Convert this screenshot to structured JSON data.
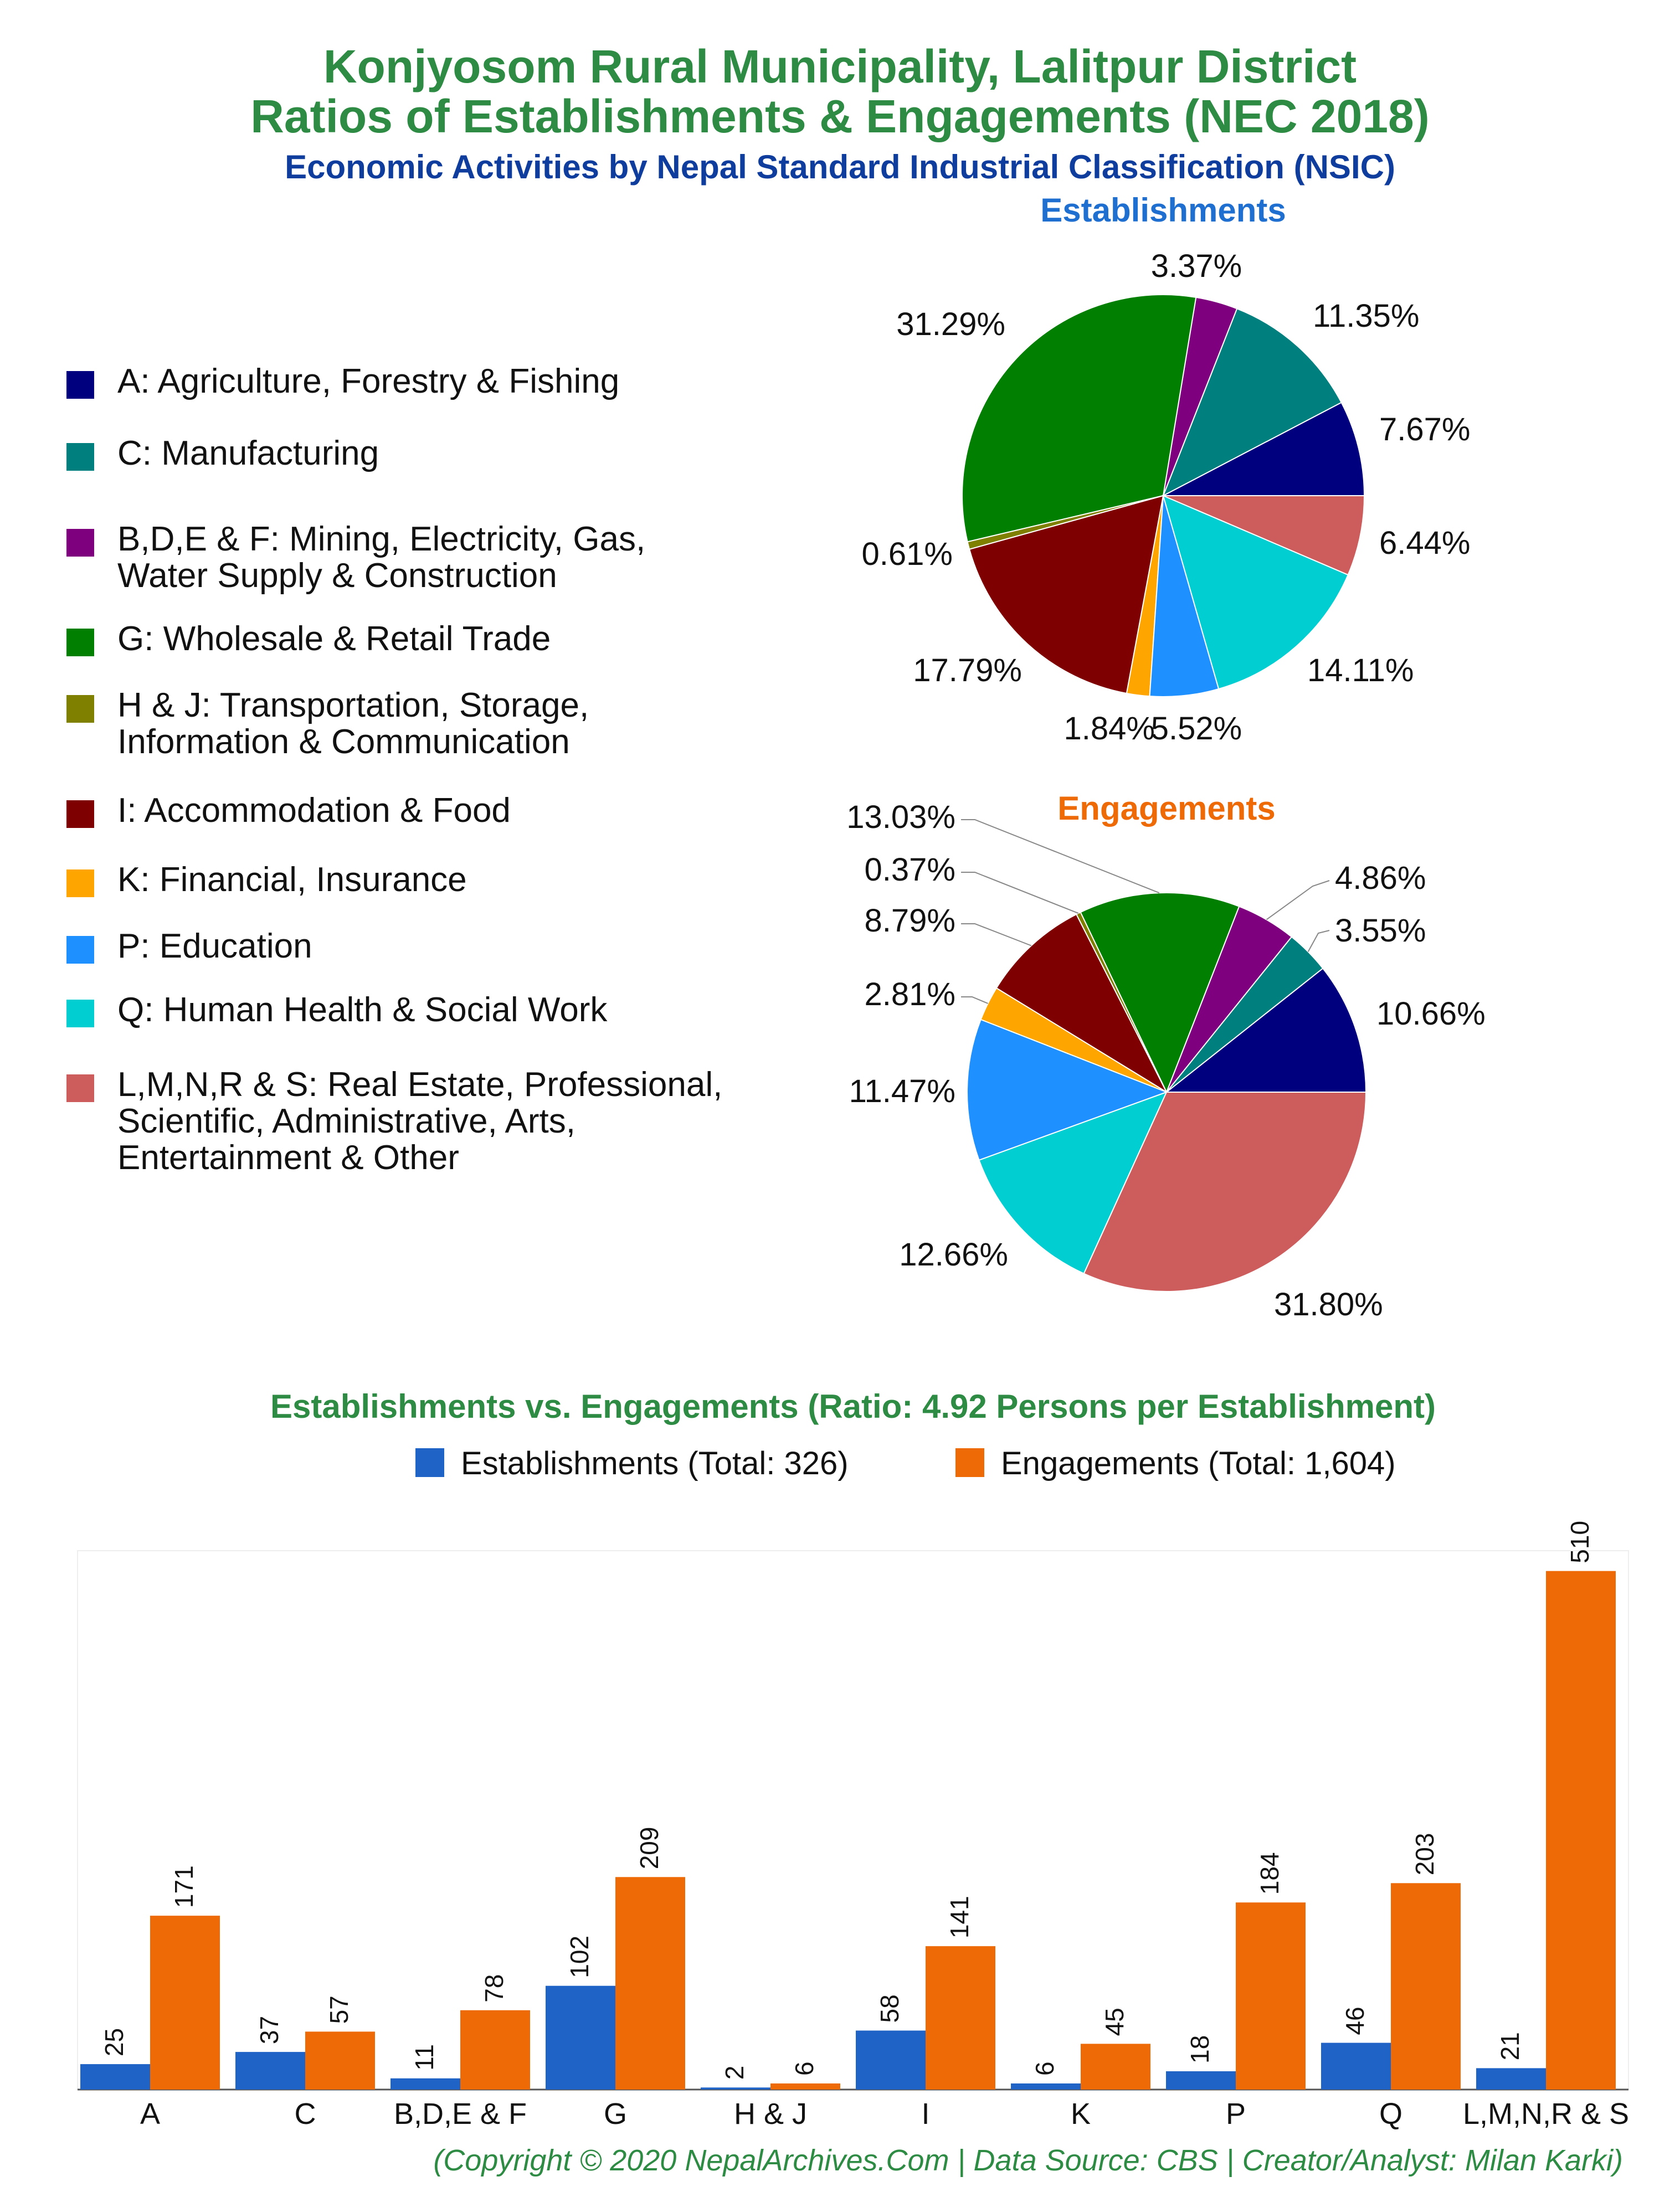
{
  "title_line1": "Konjyosom Rural Municipality, Lalitpur District",
  "title_line2": "Ratios of Establishments & Engagements (NEC 2018)",
  "subtitle": "Economic Activities by Nepal Standard Industrial Classification (NSIC)",
  "colors": {
    "title": "#2e8b44",
    "subtitle": "#0f3d9e",
    "establishments_title": "#1f6fd1",
    "engagements_title": "#ee6a06",
    "bar_establishments": "#1f63c6",
    "bar_engagements": "#ee6a06"
  },
  "legend": [
    {
      "label": "A: Agriculture, Forestry & Fishing",
      "color": "#00007f"
    },
    {
      "label": "C: Manufacturing",
      "color": "#007f7f"
    },
    {
      "label": "B,D,E & F: Mining, Electricity, Gas,\nWater Supply & Construction",
      "color": "#7f007f"
    },
    {
      "label": "G: Wholesale & Retail Trade",
      "color": "#007f00"
    },
    {
      "label": "H & J: Transportation, Storage,\nInformation & Communication",
      "color": "#7f7f00"
    },
    {
      "label": "I: Accommodation & Food",
      "color": "#7f0000"
    },
    {
      "label": "K: Financial, Insurance",
      "color": "#ffa500"
    },
    {
      "label": "P: Education",
      "color": "#1e90ff"
    },
    {
      "label": "Q: Human Health & Social Work",
      "color": "#00ced1"
    },
    {
      "label": "L,M,N,R & S: Real Estate, Professional,\nScientific, Administrative, Arts,\nEntertainment & Other",
      "color": "#cd5c5c"
    }
  ],
  "footer": "(Copyright © 2020 NepalArchives.Com | Data Source: CBS | Creator/Analyst: Milan Karki)",
  "chart_data": [
    {
      "type": "pie",
      "title": "Establishments",
      "labels": [
        "A",
        "C",
        "B,D,E & F",
        "G",
        "H & J",
        "I",
        "K",
        "P",
        "Q",
        "L,M,N,R & S"
      ],
      "values": [
        7.67,
        11.35,
        3.37,
        31.29,
        0.61,
        17.79,
        1.84,
        5.52,
        14.11,
        6.44
      ],
      "value_labels": [
        "7.67%",
        "11.35%",
        "3.37%",
        "31.29%",
        "0.61%",
        "17.79%",
        "1.84%",
        "5.52%",
        "14.11%",
        "6.44%"
      ]
    },
    {
      "type": "pie",
      "title": "Engagements",
      "labels": [
        "A",
        "C",
        "B,D,E & F",
        "G",
        "H & J",
        "I",
        "K",
        "P",
        "Q",
        "L,M,N,R & S"
      ],
      "values": [
        10.66,
        3.55,
        4.86,
        13.03,
        0.37,
        8.79,
        2.81,
        11.47,
        12.66,
        31.8
      ],
      "value_labels": [
        "10.66%",
        "3.55%",
        "4.86%",
        "13.03%",
        "0.37%",
        "8.79%",
        "2.81%",
        "11.47%",
        "12.66%",
        "31.80%"
      ]
    },
    {
      "type": "bar",
      "title": "Establishments vs. Engagements (Ratio: 4.92 Persons per Establishment)",
      "categories": [
        "A",
        "C",
        "B,D,E & F",
        "G",
        "H & J",
        "I",
        "K",
        "P",
        "Q",
        "L,M,N,R & S"
      ],
      "series": [
        {
          "name": "Establishments (Total: 326)",
          "values": [
            25,
            37,
            11,
            102,
            2,
            58,
            6,
            18,
            46,
            21
          ]
        },
        {
          "name": "Engagements (Total: 1,604)",
          "values": [
            171,
            57,
            78,
            209,
            6,
            141,
            45,
            184,
            203,
            510
          ]
        }
      ],
      "ylim": [
        0,
        530
      ],
      "legend_position": "top"
    }
  ]
}
